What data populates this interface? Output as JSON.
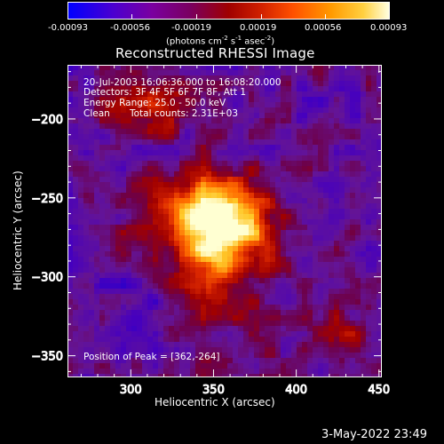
{
  "colorbar": {
    "ticks": [
      "-0.00093",
      "-0.00056",
      "-0.00019",
      "0.00019",
      "0.00056",
      "0.00093"
    ],
    "unit_parts": {
      "a": "(photons cm",
      "a_exp": "-2",
      "b": " s",
      "b_exp": "-1",
      "c": " asec",
      "c_exp": "-2",
      "d": ")"
    },
    "range": [
      -0.00093,
      0.00093
    ]
  },
  "chart_data": {
    "type": "heatmap",
    "title": "Reconstructed RHESSI Image",
    "xlabel": "Heliocentric X (arcsec)",
    "ylabel": "Heliocentric Y (arcsec)",
    "xlim": [
      262,
      452
    ],
    "ylim": [
      -364,
      -166
    ],
    "x_ticks": [
      300,
      350,
      400,
      450
    ],
    "y_ticks": [
      -200,
      -250,
      -300,
      -350
    ],
    "colormap": [
      "#0000ff",
      "#5a00b4",
      "#a00000",
      "#ff4000",
      "#ffb000",
      "#ffff80",
      "#ffffff"
    ],
    "peak": [
      362,
      -264
    ],
    "annotations": {
      "time": "20-Jul-2003 16:06:36.000 to 16:08:20.000",
      "detectors": "Detectors: 3F 4F 5F 6F 7F 8F, Att 1",
      "energy": "Energy Range: 25.0 - 50.0 keV",
      "clean_label": "Clean",
      "counts": "Total counts: 2.31E+03",
      "peak_position": "Position of Peak = [362,-264]"
    }
  },
  "footer": {
    "date": "3-May-2022 23:49"
  }
}
